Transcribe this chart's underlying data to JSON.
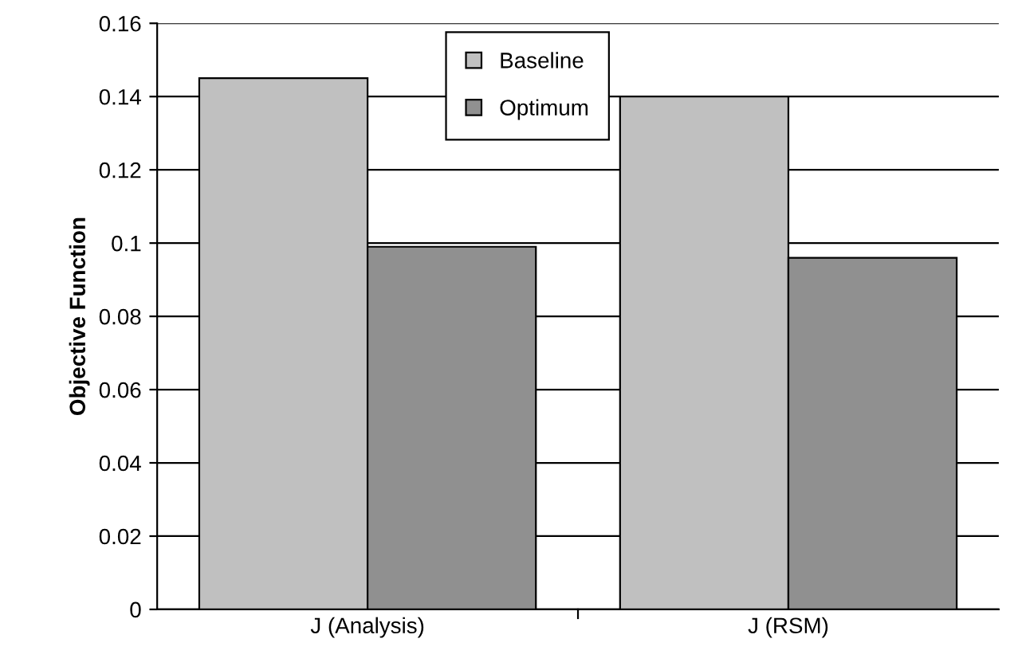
{
  "chart_data": {
    "type": "bar",
    "ylabel": "Objective Function",
    "categories": [
      "J (Analysis)",
      "J (RSM)"
    ],
    "series": [
      {
        "name": "Baseline",
        "color": "#c0c0c0",
        "values": [
          0.145,
          0.14
        ]
      },
      {
        "name": "Optimum",
        "color": "#909090",
        "values": [
          0.099,
          0.096
        ]
      }
    ],
    "ylim": [
      0,
      0.16
    ],
    "yticks": [
      {
        "value": 0,
        "label": "0"
      },
      0.02,
      0.04,
      0.06,
      0.08,
      {
        "value": 0.1,
        "label": "0.1"
      },
      0.12,
      0.14,
      0.16
    ],
    "grid": "y",
    "legend": "top"
  }
}
